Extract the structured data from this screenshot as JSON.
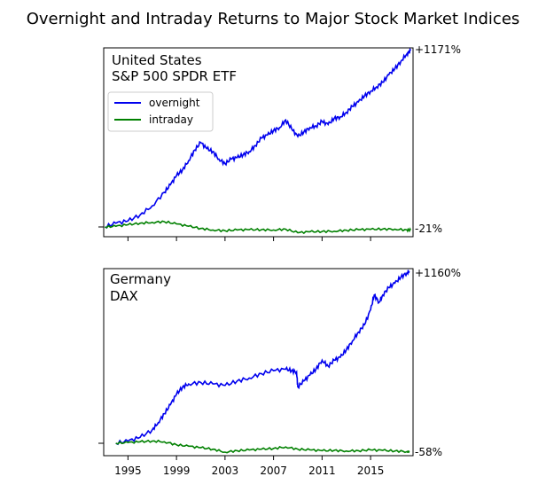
{
  "title": "Overnight and Intraday Returns to Major Stock Market Indices",
  "x_tick_labels": [
    "1995",
    "1999",
    "2003",
    "2007",
    "2011",
    "2015"
  ],
  "colors": {
    "overnight": "#0000ee",
    "intraday": "#008000",
    "axes": "#000000"
  },
  "legend": {
    "placement": "upper-left",
    "entries": [
      "overnight",
      "intraday"
    ]
  },
  "panels": [
    {
      "label_line1": "United States",
      "label_line2": "S&P 500 SPDR ETF",
      "overnight_end_label": "+1171%",
      "intraday_end_label": "-21%"
    },
    {
      "label_line1": "Germany",
      "label_line2": "DAX",
      "overnight_end_label": "+1160%",
      "intraday_end_label": "-58%"
    }
  ],
  "chart_data": [
    {
      "type": "line",
      "title": "United States S&P 500 SPDR ETF",
      "xlim": [
        1993.0,
        2018.5
      ],
      "ylim": [
        -35,
        1200
      ],
      "grid": false,
      "legend": "upper-left",
      "series": [
        {
          "name": "overnight",
          "x": [
            1993.1,
            1994.0,
            1995.0,
            1996.0,
            1997.0,
            1998.0,
            1998.5,
            1999.0,
            1999.5,
            2000.0,
            2000.5,
            2001.0,
            2001.5,
            2002.0,
            2002.5,
            2003.0,
            2003.5,
            2004.0,
            2004.5,
            2005.0,
            2005.5,
            2006.0,
            2006.5,
            2007.0,
            2007.5,
            2008.0,
            2008.5,
            2009.0,
            2009.5,
            2010.0,
            2010.5,
            2011.0,
            2011.5,
            2012.0,
            2012.5,
            2013.0,
            2013.5,
            2014.0,
            2014.5,
            2015.0,
            2015.5,
            2016.0,
            2016.5,
            2017.0,
            2017.5,
            2018.0,
            2018.3
          ],
          "y": [
            0,
            25,
            40,
            80,
            140,
            230,
            280,
            340,
            380,
            440,
            510,
            560,
            520,
            500,
            450,
            420,
            450,
            460,
            480,
            500,
            540,
            590,
            610,
            640,
            660,
            710,
            650,
            600,
            630,
            660,
            670,
            700,
            680,
            720,
            730,
            760,
            800,
            830,
            870,
            900,
            930,
            960,
            1010,
            1050,
            1100,
            1150,
            1171
          ]
        },
        {
          "name": "intraday",
          "x": [
            1993.1,
            1994.0,
            1995.0,
            1996.0,
            1997.0,
            1998.0,
            1999.0,
            2000.0,
            2001.0,
            2002.0,
            2003.0,
            2004.0,
            2005.0,
            2006.0,
            2007.0,
            2008.0,
            2009.0,
            2010.0,
            2011.0,
            2012.0,
            2013.0,
            2014.0,
            2015.0,
            2016.0,
            2017.0,
            2018.0,
            2018.3
          ],
          "y": [
            0,
            5,
            15,
            25,
            30,
            35,
            20,
            5,
            -10,
            -20,
            -25,
            -20,
            -18,
            -18,
            -20,
            -15,
            -38,
            -32,
            -30,
            -28,
            -22,
            -18,
            -16,
            -14,
            -15,
            -20,
            -21
          ]
        }
      ]
    },
    {
      "type": "line",
      "title": "Germany DAX",
      "xlim": [
        1993.0,
        2018.5
      ],
      "ylim": [
        -100,
        1200
      ],
      "grid": false,
      "legend": "none",
      "series": [
        {
          "name": "overnight",
          "x": [
            1994.0,
            1995.0,
            1996.0,
            1997.0,
            1997.5,
            1998.0,
            1998.5,
            1999.0,
            1999.5,
            2000.0,
            2001.0,
            2002.0,
            2003.0,
            2004.0,
            2005.0,
            2006.0,
            2007.0,
            2008.0,
            2008.5,
            2008.9,
            2009.0,
            2009.5,
            2010.0,
            2010.5,
            2011.0,
            2011.5,
            2012.0,
            2012.5,
            2013.0,
            2013.5,
            2014.0,
            2014.5,
            2015.0,
            2015.3,
            2015.7,
            2016.0,
            2016.5,
            2017.0,
            2017.5,
            2018.0,
            2018.2
          ],
          "y": [
            0,
            15,
            40,
            90,
            140,
            200,
            260,
            330,
            380,
            400,
            410,
            400,
            390,
            420,
            440,
            470,
            490,
            500,
            490,
            480,
            380,
            420,
            460,
            500,
            560,
            520,
            560,
            580,
            630,
            690,
            750,
            800,
            900,
            1000,
            950,
            1000,
            1050,
            1080,
            1120,
            1150,
            1160
          ]
        },
        {
          "name": "intraday",
          "x": [
            1994.0,
            1995.0,
            1996.0,
            1997.0,
            1998.0,
            1999.0,
            2000.0,
            2001.0,
            2002.0,
            2003.0,
            2004.0,
            2005.0,
            2006.0,
            2007.0,
            2008.0,
            2009.0,
            2010.0,
            2011.0,
            2012.0,
            2013.0,
            2014.0,
            2015.0,
            2016.0,
            2017.0,
            2018.0,
            2018.2
          ],
          "y": [
            0,
            5,
            10,
            15,
            10,
            -10,
            -20,
            -30,
            -40,
            -60,
            -50,
            -45,
            -40,
            -35,
            -25,
            -40,
            -45,
            -50,
            -48,
            -52,
            -50,
            -45,
            -48,
            -52,
            -56,
            -58
          ]
        }
      ]
    }
  ]
}
